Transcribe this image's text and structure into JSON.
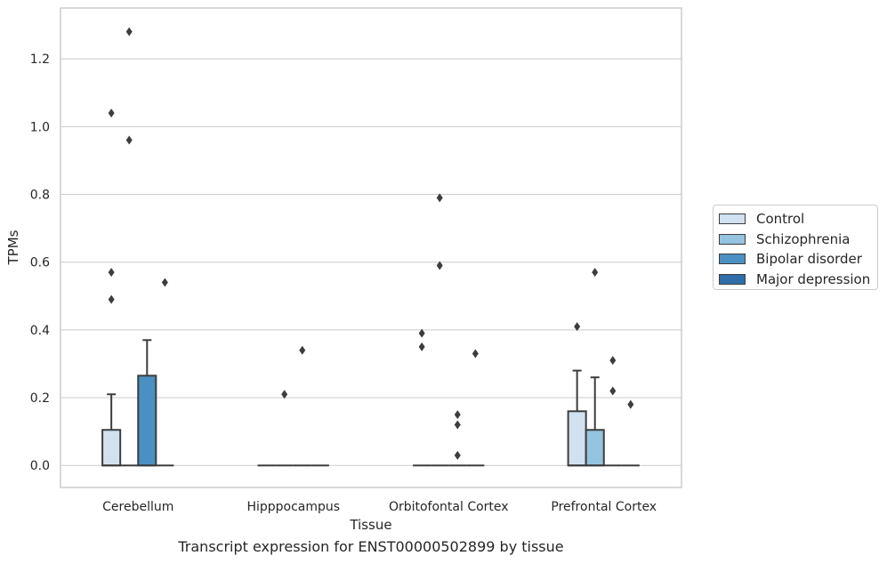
{
  "caption": "Transcript expression for ENST00000502899 by tissue",
  "chart_data": {
    "type": "box",
    "title": "",
    "xlabel": "Tissue",
    "ylabel": "TPMs",
    "ylim": [
      -0.065,
      1.35
    ],
    "yticks": [
      0.0,
      0.2,
      0.4,
      0.6,
      0.8,
      1.0,
      1.2
    ],
    "ytick_labels": [
      "0.0",
      "0.2",
      "0.4",
      "0.6",
      "0.8",
      "1.0",
      "1.2"
    ],
    "grid": "horizontal",
    "legend_position": "right-outside",
    "categories": [
      "Cerebellum",
      "Hipppocampus",
      "Orbitofontal Cortex",
      "Prefrontal Cortex"
    ],
    "series": [
      {
        "name": "Control",
        "color": "#d1e1f0",
        "boxes": [
          {
            "q1": 0.0,
            "median": 0.0,
            "q3": 0.105,
            "whisker_low": 0.0,
            "whisker_high": 0.21,
            "outliers": [
              0.49,
              0.57,
              1.04
            ]
          },
          {
            "q1": 0.0,
            "median": 0.0,
            "q3": 0.0,
            "whisker_low": 0.0,
            "whisker_high": 0.0,
            "outliers": []
          },
          {
            "q1": 0.0,
            "median": 0.0,
            "q3": 0.0,
            "whisker_low": 0.0,
            "whisker_high": 0.0,
            "outliers": [
              0.35,
              0.39
            ]
          },
          {
            "q1": 0.0,
            "median": 0.0,
            "q3": 0.16,
            "whisker_low": 0.0,
            "whisker_high": 0.28,
            "outliers": [
              0.41
            ]
          }
        ]
      },
      {
        "name": "Schizophrenia",
        "color": "#94c4df",
        "boxes": [
          {
            "q1": 0.0,
            "median": 0.0,
            "q3": 0.0,
            "whisker_low": 0.0,
            "whisker_high": 0.0,
            "outliers": [
              0.96,
              1.28
            ]
          },
          {
            "q1": 0.0,
            "median": 0.0,
            "q3": 0.0,
            "whisker_low": 0.0,
            "whisker_high": 0.0,
            "outliers": [
              0.21
            ]
          },
          {
            "q1": 0.0,
            "median": 0.0,
            "q3": 0.0,
            "whisker_low": 0.0,
            "whisker_high": 0.0,
            "outliers": [
              0.59,
              0.79
            ]
          },
          {
            "q1": 0.0,
            "median": 0.0,
            "q3": 0.105,
            "whisker_low": 0.0,
            "whisker_high": 0.26,
            "outliers": [
              0.57
            ]
          }
        ]
      },
      {
        "name": "Bipolar disorder",
        "color": "#4a90c2",
        "boxes": [
          {
            "q1": 0.0,
            "median": 0.0,
            "q3": 0.265,
            "whisker_low": 0.0,
            "whisker_high": 0.37,
            "outliers": []
          },
          {
            "q1": 0.0,
            "median": 0.0,
            "q3": 0.0,
            "whisker_low": 0.0,
            "whisker_high": 0.0,
            "outliers": [
              0.34
            ]
          },
          {
            "q1": 0.0,
            "median": 0.0,
            "q3": 0.0,
            "whisker_low": 0.0,
            "whisker_high": 0.0,
            "outliers": [
              0.03,
              0.12,
              0.15
            ]
          },
          {
            "q1": 0.0,
            "median": 0.0,
            "q3": 0.0,
            "whisker_low": 0.0,
            "whisker_high": 0.0,
            "outliers": [
              0.22,
              0.31
            ]
          }
        ]
      },
      {
        "name": "Major depression",
        "color": "#2f6ea8",
        "boxes": [
          {
            "q1": 0.0,
            "median": 0.0,
            "q3": 0.0,
            "whisker_low": 0.0,
            "whisker_high": 0.0,
            "outliers": [
              0.54
            ]
          },
          {
            "q1": 0.0,
            "median": 0.0,
            "q3": 0.0,
            "whisker_low": 0.0,
            "whisker_high": 0.0,
            "outliers": []
          },
          {
            "q1": 0.0,
            "median": 0.0,
            "q3": 0.0,
            "whisker_low": 0.0,
            "whisker_high": 0.0,
            "outliers": [
              0.33
            ]
          },
          {
            "q1": 0.0,
            "median": 0.0,
            "q3": 0.0,
            "whisker_low": 0.0,
            "whisker_high": 0.0,
            "outliers": [
              0.18
            ]
          }
        ]
      }
    ]
  }
}
